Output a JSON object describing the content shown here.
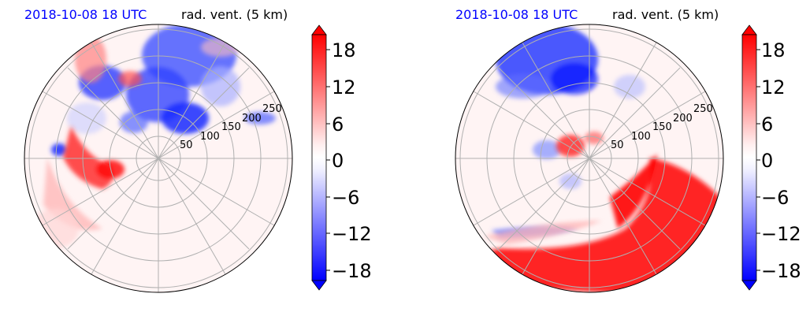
{
  "panels": [
    {
      "date_label": "2018-10-08 18 UTC",
      "variable_label": "rad. vent. (5 km)",
      "radial_labels": [
        "50",
        "100",
        "150",
        "200",
        "250"
      ]
    },
    {
      "date_label": "2018-10-08 18 UTC",
      "variable_label": "rad. vent. (5 km)",
      "radial_labels": [
        "50",
        "100",
        "150",
        "200",
        "250"
      ]
    }
  ],
  "colorbar": {
    "tick_labels": [
      "18",
      "12",
      "6",
      "0",
      "−6",
      "−12",
      "−18"
    ],
    "tick_values": [
      18,
      12,
      6,
      0,
      -6,
      -12,
      -18
    ],
    "vmin": -20,
    "vmax": 20,
    "extend": "both",
    "colormap": "bwr",
    "low_color": "#0000ff",
    "mid_color": "#ffffff",
    "high_color": "#ff0000"
  },
  "chart_data": [
    {
      "type": "heatmap",
      "projection": "polar",
      "title": "rad. vent. (5 km)",
      "date": "2018-10-08 18 UTC",
      "radial_ticks": [
        50,
        100,
        150,
        200,
        250
      ],
      "colorbar_range": [
        -20,
        20
      ],
      "colorbar_ticks": [
        -18,
        -12,
        -6,
        0,
        6,
        12,
        18
      ],
      "grid": true
    },
    {
      "type": "heatmap",
      "projection": "polar",
      "title": "rad. vent. (5 km)",
      "date": "2018-10-08 18 UTC",
      "radial_ticks": [
        50,
        100,
        150,
        200,
        250
      ],
      "colorbar_range": [
        -20,
        20
      ],
      "colorbar_ticks": [
        -18,
        -12,
        -6,
        0,
        6,
        12,
        18
      ],
      "grid": true
    }
  ]
}
